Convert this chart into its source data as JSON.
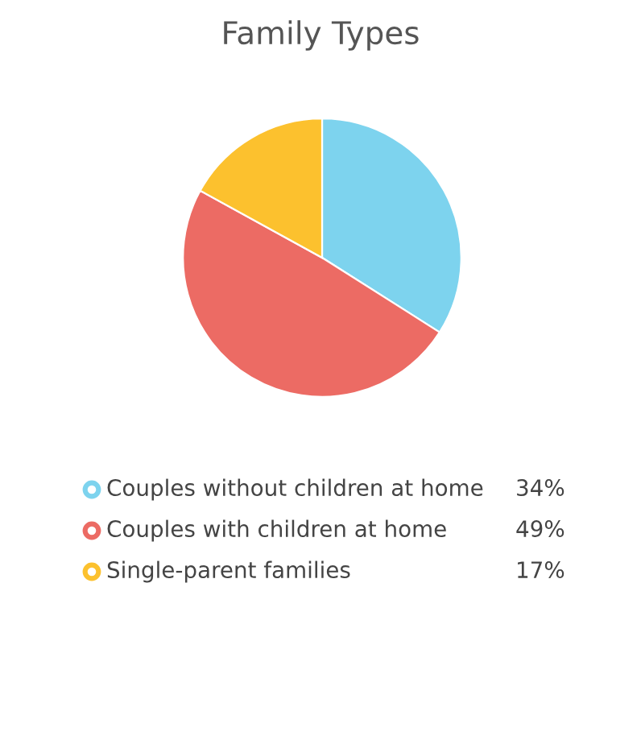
{
  "chart_data": {
    "type": "pie",
    "title": "Family Types",
    "categories": [
      "Couples without children at home",
      "Couples with children at home",
      "Single-parent families"
    ],
    "values": [
      34,
      49,
      17
    ],
    "colors": [
      "#7dd3ee",
      "#ec6b64",
      "#fcc12e"
    ],
    "value_labels": [
      "34%",
      "49%",
      "17%"
    ],
    "legend": "bottom"
  }
}
